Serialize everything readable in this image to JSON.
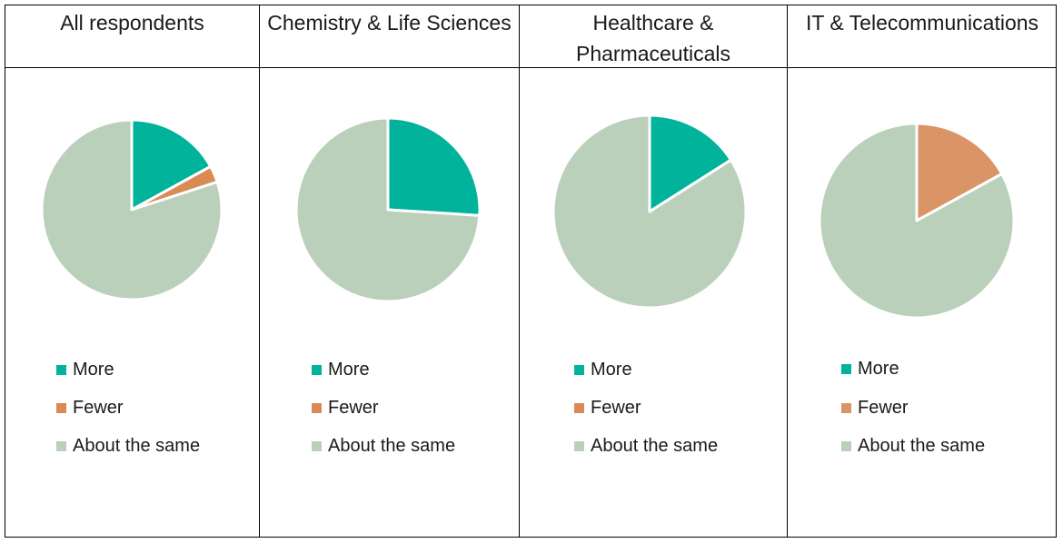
{
  "colors": {
    "more": "#00b39a",
    "fewer": "#d98a55",
    "same": "#bbd0bb"
  },
  "legend_labels": [
    "More",
    "Fewer",
    "About the same"
  ],
  "chart_data": [
    {
      "type": "pie",
      "title": "All respondents",
      "categories": [
        "More",
        "Fewer",
        "About the same"
      ],
      "values": [
        17,
        3,
        80
      ]
    },
    {
      "type": "pie",
      "title": "Chemistry & Life Sciences",
      "categories": [
        "More",
        "Fewer",
        "About the same"
      ],
      "values": [
        26,
        0,
        74
      ]
    },
    {
      "type": "pie",
      "title": "Healthcare & Pharmaceuticals",
      "categories": [
        "More",
        "Fewer",
        "About the same"
      ],
      "values": [
        16,
        0,
        84
      ]
    },
    {
      "type": "pie",
      "title": "IT & Telecommunications",
      "categories": [
        "More",
        "Fewer",
        "About the same"
      ],
      "values": [
        0,
        17,
        83
      ]
    }
  ]
}
